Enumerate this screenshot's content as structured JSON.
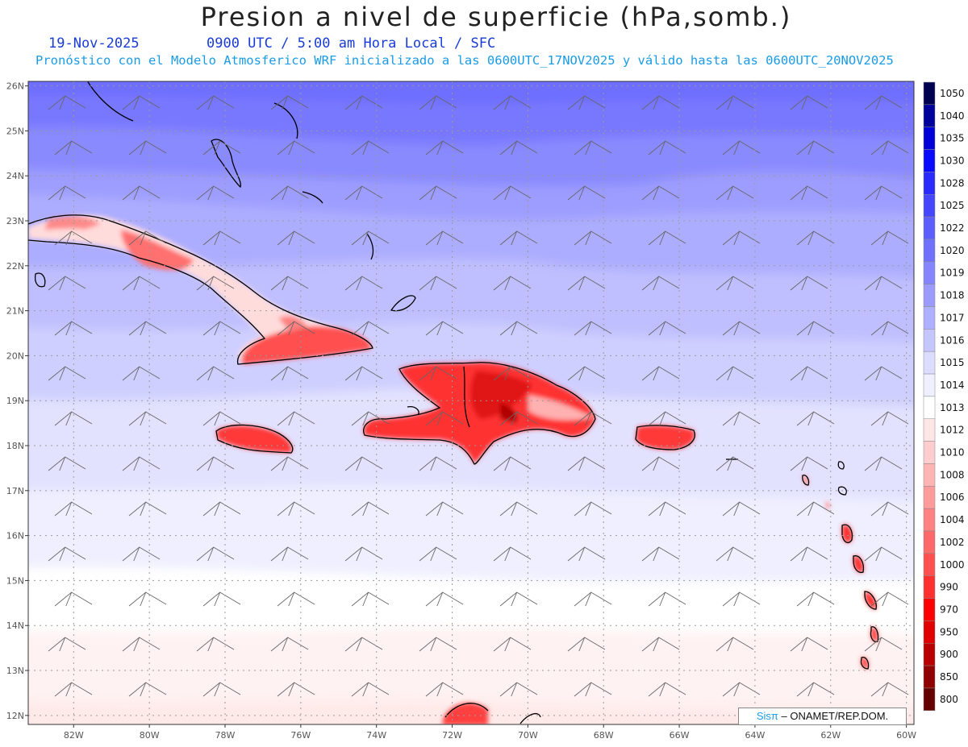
{
  "header": {
    "title": "Presion a nivel de superficie (hPa,somb.)",
    "date": "19-Nov-2025",
    "valid_time": "0900 UTC / 5:00 am Hora Local / SFC",
    "model_info": "Pronóstico con el Modelo Atmosferico WRF inicializado a las 0600UTC_17NOV2025 y válido hasta las  0600UTC_20NOV2025"
  },
  "map": {
    "lon_range": [
      -83.2,
      -59.8
    ],
    "lat_range": [
      11.8,
      26.1
    ],
    "lat_ticks": [
      "12N",
      "13N",
      "14N",
      "15N",
      "16N",
      "17N",
      "18N",
      "19N",
      "20N",
      "21N",
      "22N",
      "23N",
      "24N",
      "25N",
      "26N"
    ],
    "lon_ticks": [
      "82W",
      "80W",
      "78W",
      "76W",
      "74W",
      "72W",
      "70W",
      "68W",
      "66W",
      "64W",
      "62W",
      "60W"
    ],
    "grid": "dotted"
  },
  "legend": {
    "labels": [
      "1050",
      "1040",
      "1035",
      "1030",
      "1028",
      "1025",
      "1022",
      "1020",
      "1019",
      "1018",
      "1017",
      "1016",
      "1015",
      "1014",
      "1013",
      "1012",
      "1010",
      "1008",
      "1006",
      "1004",
      "1002",
      "1000",
      "990",
      "970",
      "950",
      "900",
      "850",
      "800"
    ],
    "colors": [
      "#000050",
      "#00009a",
      "#0000d8",
      "#0a0aff",
      "#2a2aff",
      "#4646ff",
      "#5e5eff",
      "#7070ff",
      "#8585ff",
      "#9b9bff",
      "#afafff",
      "#c5c5ff",
      "#dcdcff",
      "#efefff",
      "#ffffff",
      "#ffe6e6",
      "#ffcdcd",
      "#ffb4b4",
      "#ff9b9b",
      "#ff8282",
      "#ff6969",
      "#ff5050",
      "#ff3030",
      "#ff0000",
      "#e00000",
      "#b80000",
      "#900000",
      "#660000"
    ]
  },
  "credit": {
    "brand": "Sis",
    "pi": "π",
    "text": "– ONAMET/REP.DOM."
  }
}
